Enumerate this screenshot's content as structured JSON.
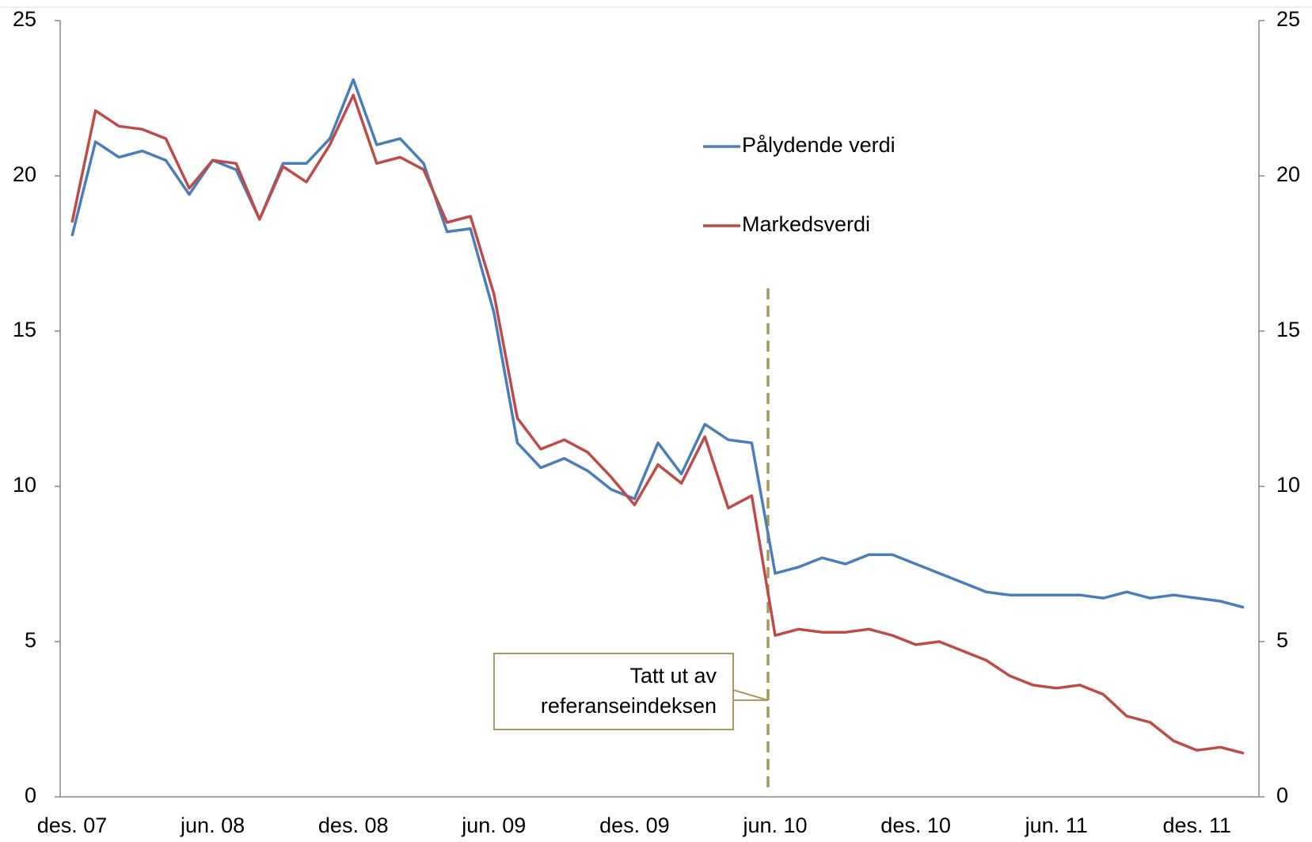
{
  "chart_data": {
    "type": "line",
    "categories": [
      "des. 07",
      null,
      null,
      null,
      null,
      null,
      "jun. 08",
      null,
      null,
      null,
      null,
      null,
      "des. 08",
      null,
      null,
      null,
      null,
      null,
      "jun. 09",
      null,
      null,
      null,
      null,
      null,
      "des. 09",
      null,
      null,
      null,
      null,
      null,
      "jun. 10",
      null,
      null,
      null,
      null,
      null,
      "des. 10",
      null,
      null,
      null,
      null,
      null,
      "jun. 11",
      null,
      null,
      null,
      null,
      null,
      "des. 11",
      null,
      null
    ],
    "series": [
      {
        "name": "Pålydende verdi",
        "color": "#4a7ebb",
        "values": [
          18.06,
          21.1,
          20.6,
          20.8,
          20.5,
          19.4,
          20.5,
          20.2,
          18.6,
          20.4,
          20.4,
          21.2,
          23.1,
          21.0,
          21.2,
          20.4,
          18.2,
          18.3,
          15.6,
          11.4,
          10.6,
          10.9,
          10.5,
          9.9,
          9.6,
          11.4,
          10.4,
          12.0,
          11.5,
          11.4,
          7.2,
          7.4,
          7.7,
          7.5,
          7.8,
          7.8,
          7.5,
          7.2,
          6.9,
          6.6,
          6.5,
          6.5,
          6.5,
          6.5,
          6.4,
          6.6,
          6.4,
          6.5,
          6.4,
          6.3,
          6.1
        ]
      },
      {
        "name": "Markedsverdi",
        "color": "#be4b48",
        "values": [
          18.5,
          22.1,
          21.6,
          21.5,
          21.2,
          19.6,
          20.5,
          20.4,
          18.6,
          20.3,
          19.8,
          21.0,
          22.6,
          20.4,
          20.6,
          20.2,
          18.5,
          18.7,
          16.2,
          12.2,
          11.2,
          11.5,
          11.1,
          10.3,
          9.4,
          10.7,
          10.1,
          11.6,
          9.3,
          9.7,
          5.2,
          5.4,
          5.3,
          5.3,
          5.4,
          5.2,
          4.9,
          5.0,
          4.7,
          4.4,
          3.9,
          3.6,
          3.5,
          3.6,
          3.3,
          2.6,
          2.4,
          1.8,
          1.5,
          1.6,
          1.4
        ]
      }
    ],
    "ylim": [
      0,
      25
    ],
    "yticks": [
      0,
      5,
      10,
      15,
      20,
      25
    ],
    "y2lim": [
      0,
      25
    ],
    "y2ticks": [
      0,
      5,
      10,
      15,
      20,
      25
    ],
    "grid": false,
    "legend": "top",
    "annotation": [
      "Tatt ut av",
      "referanseindeksen"
    ]
  }
}
